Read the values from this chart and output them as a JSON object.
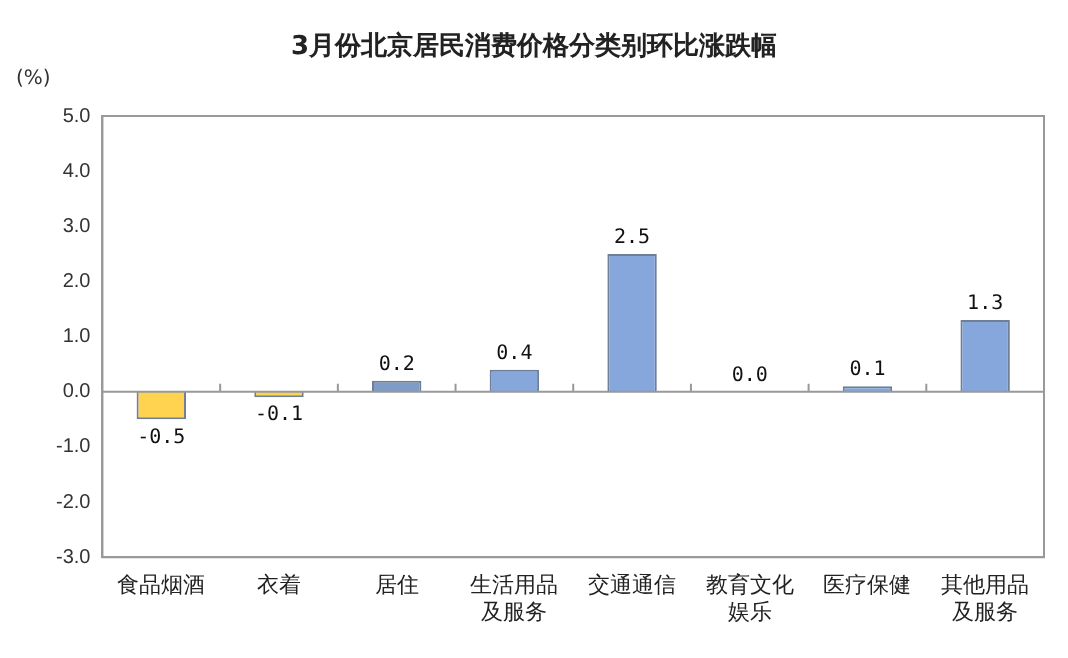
{
  "chart_data": {
    "type": "bar",
    "title": "3月份北京居民消费价格分类别环比涨跌幅",
    "ylabel": "(%)",
    "categories": [
      "食品烟酒",
      "衣着",
      "居住",
      "生活用品及服务",
      "交通通信",
      "教育文化娱乐",
      "医疗保健",
      "其他用品及服务"
    ],
    "values": [
      -0.5,
      -0.1,
      0.2,
      0.4,
      2.5,
      0.0,
      0.1,
      1.3
    ],
    "colors": [
      "#ffd24f",
      "#ffd24f",
      "#7f9cc9",
      "#85a7dc",
      "#85a7dc",
      "#85a7dc",
      "#85a7dc",
      "#85a7dc"
    ],
    "value_labels": [
      "-0.5",
      "-0.1",
      "0.2",
      "0.4",
      "2.5",
      "0.0",
      "0.1",
      "1.3"
    ],
    "ylim": [
      -3,
      5
    ],
    "yticks": [
      {
        "value": -3,
        "label": "-3.0"
      },
      {
        "value": -2,
        "label": "-2.0"
      },
      {
        "value": -1,
        "label": "-1.0"
      },
      {
        "value": 0,
        "label": "0.0"
      },
      {
        "value": 1,
        "label": "1.0"
      },
      {
        "value": 2,
        "label": "2.0"
      },
      {
        "value": 3,
        "label": "3.0"
      },
      {
        "value": 4,
        "label": "4.0"
      },
      {
        "value": 5,
        "label": "5.0"
      }
    ],
    "legend": false
  }
}
